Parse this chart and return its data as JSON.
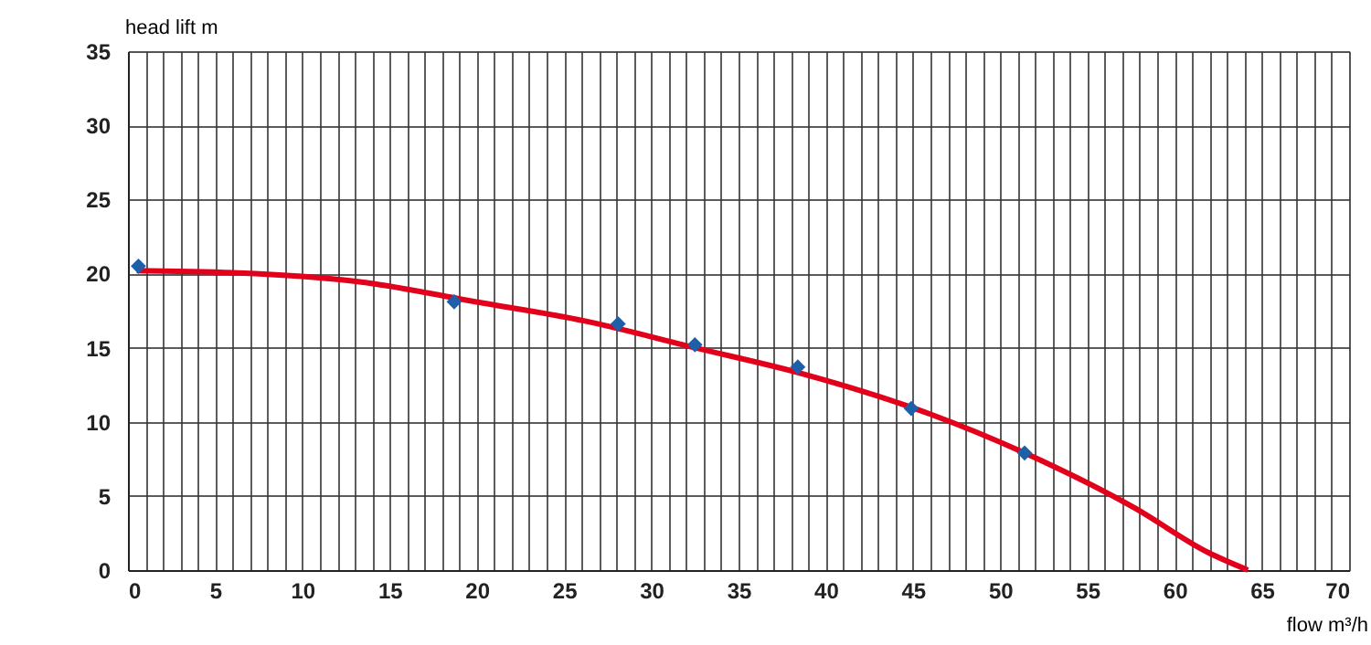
{
  "chart_data": {
    "type": "line",
    "xlabel": "flow m³/h",
    "ylabel": "head lift m",
    "xlim": [
      0,
      70
    ],
    "ylim": [
      0,
      35
    ],
    "xticks": [
      0,
      {
        "value": 1,
        "label": null
      },
      {
        "value": 2,
        "label": null
      },
      {
        "value": 3,
        "label": null
      },
      {
        "value": 4,
        "label": null
      },
      5,
      {
        "value": 6,
        "label": null
      },
      {
        "value": 7,
        "label": null
      },
      {
        "value": 8,
        "label": null
      },
      {
        "value": 9,
        "label": null
      },
      10,
      {
        "value": 11,
        "label": null
      },
      {
        "value": 12,
        "label": null
      },
      {
        "value": 13,
        "label": null
      },
      {
        "value": 14,
        "label": null
      },
      15,
      {
        "value": 16,
        "label": null
      },
      {
        "value": 17,
        "label": null
      },
      {
        "value": 18,
        "label": null
      },
      {
        "value": 19,
        "label": null
      },
      20,
      {
        "value": 21,
        "label": null
      },
      {
        "value": 22,
        "label": null
      },
      {
        "value": 23,
        "label": null
      },
      {
        "value": 24,
        "label": null
      },
      25,
      {
        "value": 26,
        "label": null
      },
      {
        "value": 27,
        "label": null
      },
      {
        "value": 28,
        "label": null
      },
      {
        "value": 29,
        "label": null
      },
      30,
      {
        "value": 31,
        "label": null
      },
      {
        "value": 32,
        "label": null
      },
      {
        "value": 33,
        "label": null
      },
      {
        "value": 34,
        "label": null
      },
      35,
      {
        "value": 36,
        "label": null
      },
      {
        "value": 37,
        "label": null
      },
      {
        "value": 38,
        "label": null
      },
      {
        "value": 39,
        "label": null
      },
      40,
      {
        "value": 41,
        "label": null
      },
      {
        "value": 42,
        "label": null
      },
      {
        "value": 43,
        "label": null
      },
      {
        "value": 44,
        "label": null
      },
      45,
      {
        "value": 46,
        "label": null
      },
      {
        "value": 47,
        "label": null
      },
      {
        "value": 48,
        "label": null
      },
      {
        "value": 49,
        "label": null
      },
      50,
      {
        "value": 51,
        "label": null
      },
      {
        "value": 52,
        "label": null
      },
      {
        "value": 53,
        "label": null
      },
      {
        "value": 54,
        "label": null
      },
      55,
      {
        "value": 56,
        "label": null
      },
      {
        "value": 57,
        "label": null
      },
      {
        "value": 58,
        "label": null
      },
      {
        "value": 59,
        "label": null
      },
      60,
      {
        "value": 61,
        "label": null
      },
      {
        "value": 62,
        "label": null
      },
      {
        "value": 63,
        "label": null
      },
      {
        "value": 64,
        "label": null
      },
      65,
      {
        "value": 66,
        "label": null
      },
      {
        "value": 67,
        "label": null
      },
      {
        "value": 68,
        "label": null
      },
      {
        "value": 69,
        "label": null
      },
      70
    ],
    "yticks": [
      0,
      5,
      10,
      15,
      20,
      25,
      30,
      35
    ],
    "grid": true,
    "series": [
      {
        "color": "#e2001a",
        "marker": "none",
        "line_style": "solid",
        "x": [
          0.5,
          7.3,
          13.6,
          19.9,
          26.2,
          32.5,
          38.8,
          45.1,
          51.4,
          57.7,
          61.9,
          64.2
        ],
        "values": [
          20.2,
          20.0,
          19.4,
          18.1,
          16.8,
          15.0,
          13.2,
          10.9,
          7.9,
          4.2,
          1.2,
          0
        ]
      },
      {
        "type": "scatter",
        "color": "#1f5fa8",
        "marker": "diamond",
        "x": [
          0.6,
          18.7,
          28.1,
          32.5,
          38.4,
          44.9,
          51.4
        ],
        "values": [
          20.5,
          18.1,
          16.6,
          15.2,
          13.7,
          10.9,
          7.9
        ]
      }
    ]
  }
}
